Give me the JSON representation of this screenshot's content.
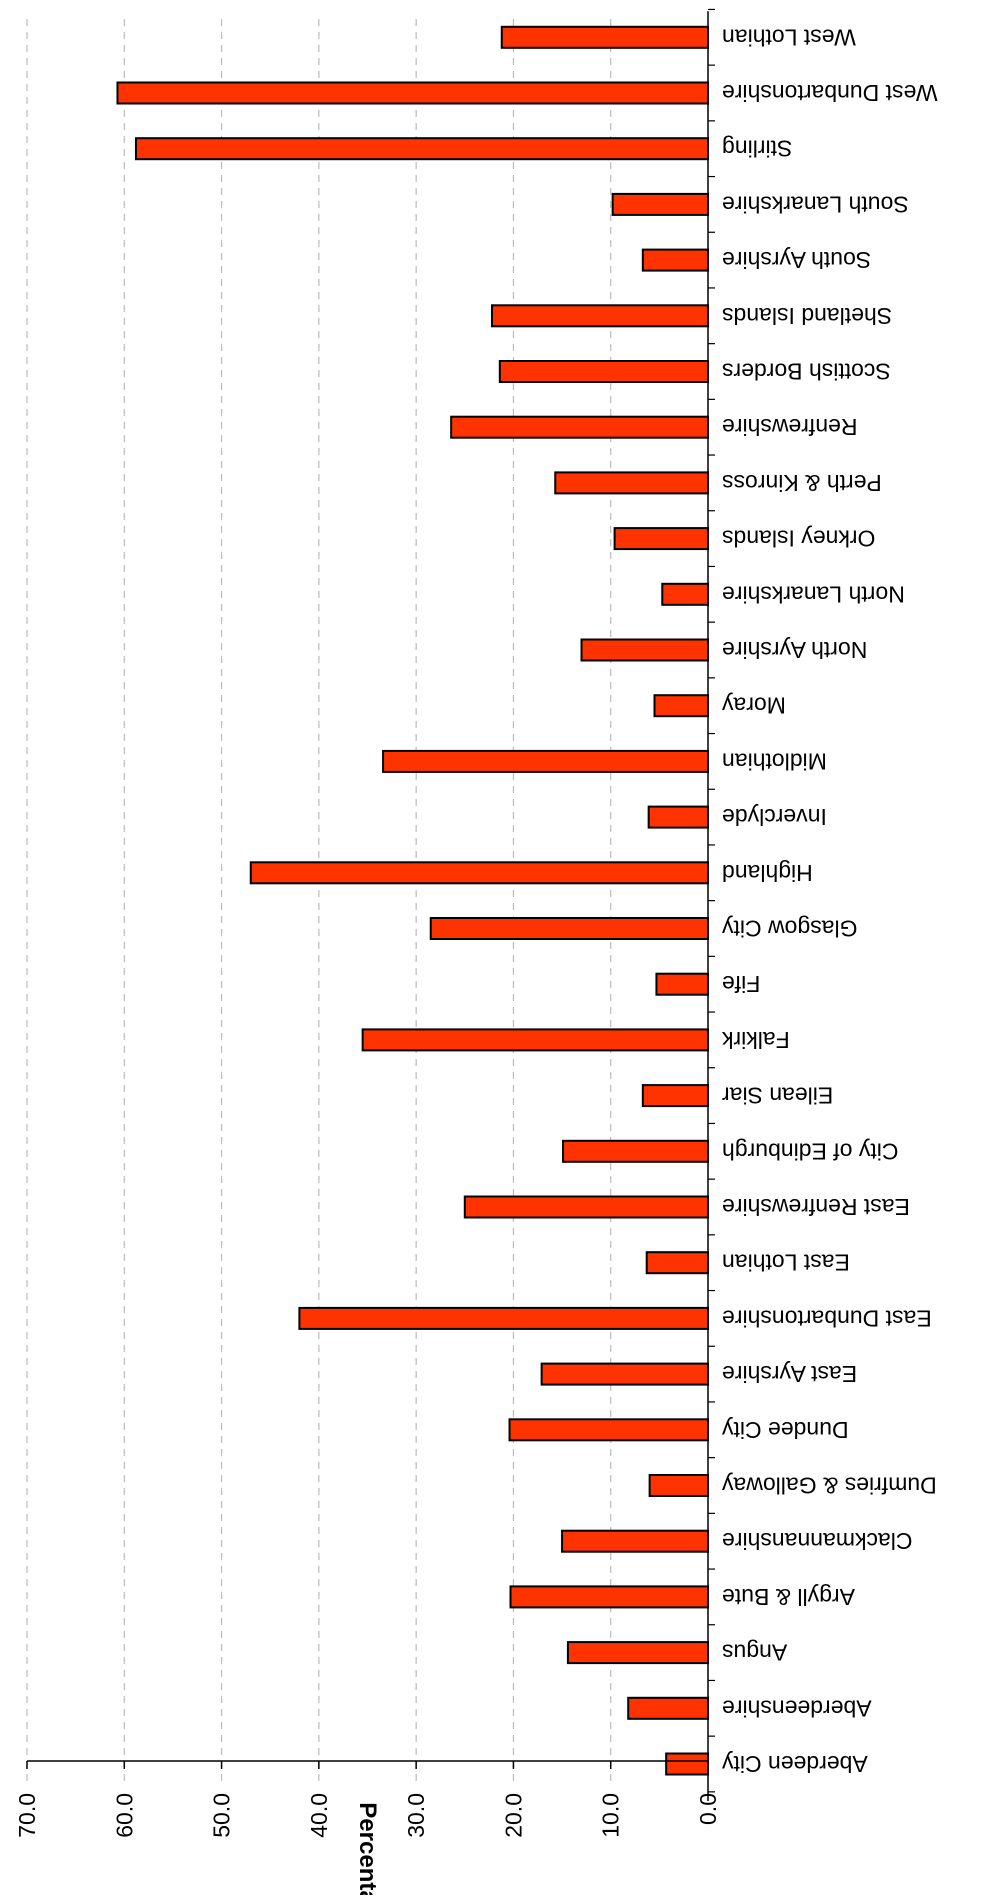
{
  "chart_data": {
    "type": "bar",
    "orientation": "horizontal",
    "rendered_rotation_degrees": 180,
    "title": "",
    "xlabel": "",
    "ylabel": "Percentage",
    "ylim": [
      0,
      70
    ],
    "yticks": [
      "0.0",
      "10.0",
      "20.0",
      "30.0",
      "40.0",
      "50.0",
      "60.0",
      "70.0"
    ],
    "grid": true,
    "legend": "none",
    "bar_color": "#ff3300",
    "bar_edge_color": "#000000",
    "categories": [
      "Aberdeen City",
      "Aberdeenshire",
      "Angus",
      "Argyll & Bute",
      "Clackmannanshire",
      "Dumfries & Galloway",
      "Dundee City",
      "East Ayrshire",
      "East Dunbartonshire",
      "East Lothian",
      "East Renfrewshire",
      "City of Edinburgh",
      "Eilean Siar",
      "Falkirk",
      "Fife",
      "Glasgow City",
      "Highland",
      "Inverclyde",
      "Midlothian",
      "Moray",
      "North Ayrshire",
      "North Lanarkshire",
      "Orkney Islands",
      "Perth & Kinross",
      "Renfrewshire",
      "Scottish Borders",
      "Shetland Islands",
      "South Ayrshire",
      "South Lanarkshire",
      "Stirling",
      "West Dunbartonshire",
      "West Lothian"
    ],
    "values": [
      4.3,
      8.2,
      14.4,
      20.3,
      15.0,
      6.0,
      20.4,
      17.1,
      42.0,
      6.3,
      25.0,
      14.9,
      6.7,
      35.5,
      5.3,
      28.5,
      47.0,
      6.1,
      33.4,
      5.5,
      13.0,
      4.7,
      9.6,
      15.7,
      26.4,
      21.4,
      22.2,
      6.7,
      9.8,
      58.8,
      60.7,
      21.2
    ]
  }
}
